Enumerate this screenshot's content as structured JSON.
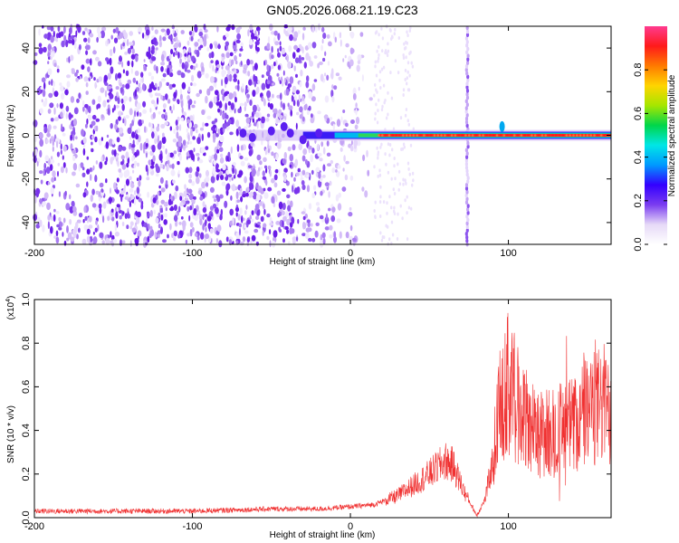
{
  "title": "GN05.2026.068.21.19.C23",
  "chart_data": [
    {
      "type": "heatmap",
      "xlabel": "Height of straight line (km)",
      "ylabel": "Frequency (Hz)",
      "xlim": [
        -200,
        165
      ],
      "ylim": [
        -50,
        50
      ],
      "xticks": [
        -200,
        -100,
        0,
        100
      ],
      "yticks": [
        -40,
        -20,
        0,
        20,
        40
      ],
      "colorbar": {
        "label": "Normalized spectral amplitude",
        "range": [
          0.0,
          1.0
        ],
        "ticks": [
          "0.0",
          "0.2",
          "0.4",
          "0.6",
          "0.8"
        ],
        "colormap": [
          "#ffffff",
          "#e6d9f7",
          "#7a3cf0",
          "#3300ff",
          "#0099ff",
          "#00e6e6",
          "#00d64a",
          "#a6e600",
          "#ffd400",
          "#ff7a00",
          "#ff1a1a",
          "#ff3b8f"
        ]
      },
      "features": {
        "noise_region_x": [
          -200,
          15
        ],
        "signal_line_frequency": 0,
        "signal_line_x": [
          -70,
          165
        ],
        "strong_signal_x": [
          18,
          165
        ],
        "vertical_stripe_x": 74
      }
    },
    {
      "type": "line",
      "xlabel": "Height of straight line (km)",
      "ylabel": "SNR (10 * v/v)",
      "scale_label": "(x10",
      "scale_exp": "4",
      "xlim": [
        -200,
        165
      ],
      "ylim": [
        0,
        1.0
      ],
      "xticks": [
        -200,
        -100,
        0,
        100
      ],
      "yticks": [
        "0.0",
        "0.2",
        "0.4",
        "0.6",
        "0.8",
        "1.0"
      ],
      "line_color": "#f03030",
      "series_envelope": {
        "x": [
          -200,
          -150,
          -100,
          -50,
          -20,
          0,
          15,
          30,
          50,
          60,
          65,
          72,
          80,
          85,
          90,
          95,
          100,
          110,
          120,
          130,
          140,
          150,
          160,
          165
        ],
        "y": [
          0.03,
          0.03,
          0.03,
          0.04,
          0.04,
          0.05,
          0.06,
          0.1,
          0.2,
          0.26,
          0.24,
          0.12,
          0.01,
          0.08,
          0.25,
          0.55,
          0.62,
          0.45,
          0.38,
          0.4,
          0.42,
          0.48,
          0.52,
          0.5
        ]
      }
    }
  ]
}
